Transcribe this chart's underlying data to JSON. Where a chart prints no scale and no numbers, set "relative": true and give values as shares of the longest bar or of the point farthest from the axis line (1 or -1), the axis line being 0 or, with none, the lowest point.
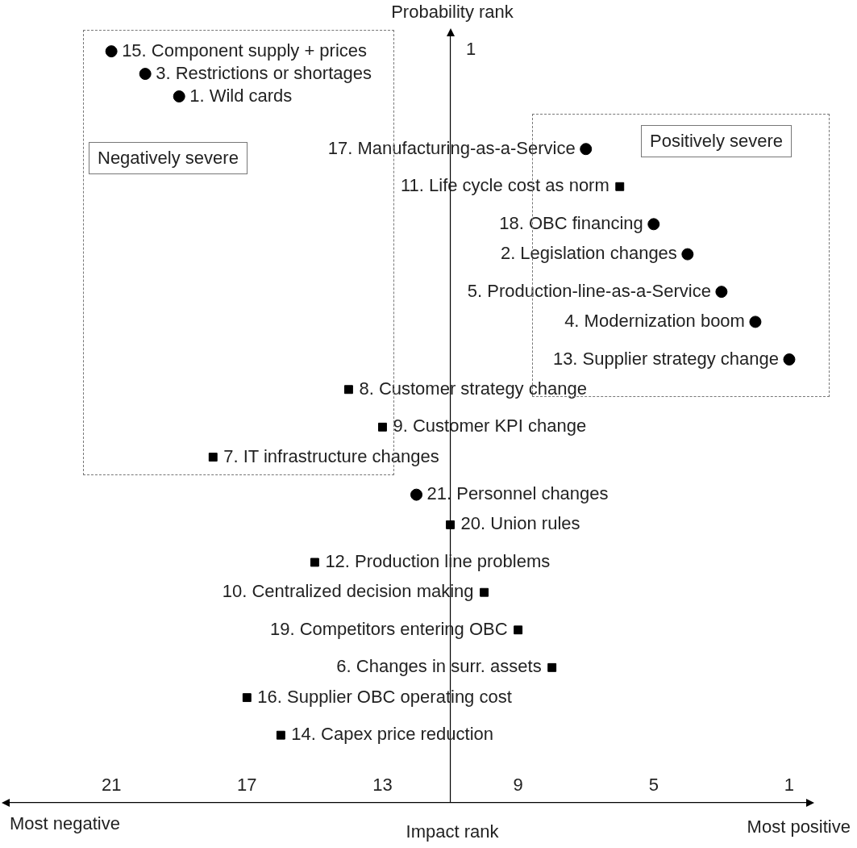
{
  "chart_data": {
    "type": "scatter",
    "xlabel": "Impact rank",
    "ylabel": "Probability rank",
    "relative": true,
    "xlim": [
      24,
      0.5
    ],
    "xticks": [
      21,
      17,
      13,
      9,
      5,
      1
    ],
    "grid": false,
    "legend": false,
    "ref_lines": [
      {
        "axis": "x",
        "value": 11,
        "color": "#000000"
      }
    ],
    "series": [
      {
        "marker": "circle",
        "color": "#000000",
        "x": [
          21,
          20,
          19,
          7,
          5,
          4,
          3,
          2,
          1,
          12
        ],
        "values": [
          1,
          0.97,
          0.94,
          0.87,
          0.77,
          0.73,
          0.68,
          0.64,
          0.59,
          0.41
        ]
      },
      {
        "marker": "square",
        "color": "#000000",
        "x": [
          6,
          14,
          13,
          18,
          11,
          15,
          10,
          9,
          8,
          17,
          16
        ],
        "values": [
          0.82,
          0.55,
          0.5,
          0.46,
          0.37,
          0.32,
          0.28,
          0.23,
          0.18,
          0.14,
          0.09
        ]
      }
    ],
    "annotations": [
      "Negatively severe",
      "Positively severe",
      "Most negative",
      "Most positive",
      "1",
      {
        "text": "15. Component supply + prices",
        "x": 21,
        "y": 1
      },
      {
        "text": "3. Restrictions or shortages",
        "x": 20,
        "y": 0.97
      },
      {
        "text": "1. Wild cards",
        "x": 19,
        "y": 0.94
      },
      {
        "text": "17. Manufacturing-as-a-Service",
        "x": 7,
        "y": 0.87
      },
      {
        "text": "11. Life cycle cost as norm",
        "x": 6,
        "y": 0.82
      },
      {
        "text": "18. OBC financing",
        "x": 5,
        "y": 0.77
      },
      {
        "text": "2. Legislation changes",
        "x": 4,
        "y": 0.73
      },
      {
        "text": "5. Production-line-as-a-Service",
        "x": 3,
        "y": 0.68
      },
      {
        "text": "4. Modernization boom",
        "x": 2,
        "y": 0.64
      },
      {
        "text": "13. Supplier strategy change",
        "x": 1,
        "y": 0.59
      },
      {
        "text": "8. Customer strategy change",
        "x": 14,
        "y": 0.55
      },
      {
        "text": "9. Customer KPI change",
        "x": 13,
        "y": 0.5
      },
      {
        "text": "7. IT infrastructure changes",
        "x": 18,
        "y": 0.46
      },
      {
        "text": "21. Personnel changes",
        "x": 12,
        "y": 0.41
      },
      {
        "text": "20. Union rules",
        "x": 11,
        "y": 0.37
      },
      {
        "text": "12. Production line problems",
        "x": 15,
        "y": 0.32
      },
      {
        "text": "10. Centralized decision making",
        "x": 10,
        "y": 0.28
      },
      {
        "text": "19. Competitors entering OBC",
        "x": 9,
        "y": 0.23
      },
      {
        "text": "6. Changes in surr. assets",
        "x": 8,
        "y": 0.18
      },
      {
        "text": "16. Supplier OBC operating cost",
        "x": 17,
        "y": 0.14
      },
      {
        "text": "14. Capex price reduction",
        "x": 16,
        "y": 0.09
      }
    ]
  }
}
